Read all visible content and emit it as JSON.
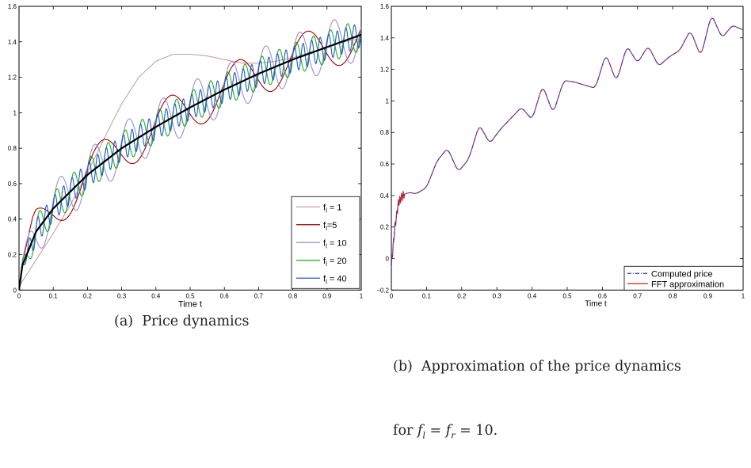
{
  "chart_data": [
    {
      "type": "line",
      "xlabel": "Time t",
      "ylabel": "",
      "xlim": [
        0,
        1
      ],
      "ylim": [
        0,
        1.6
      ],
      "xticks": [
        "0",
        "0.1",
        "0.2",
        "0.3",
        "0.4",
        "0.5",
        "0.6",
        "0.7",
        "0.8",
        "0.9",
        "1"
      ],
      "yticks": [
        "0",
        "0.2",
        "0.4",
        "0.6",
        "0.8",
        "1",
        "1.2",
        "1.4",
        "1.6"
      ],
      "legend_position": "bottom-right",
      "caption": "(a)  Price dynamics",
      "trend": {
        "x": [
          0,
          0.01,
          0.05,
          0.1,
          0.2,
          0.3,
          0.4,
          0.5,
          0.6,
          0.7,
          0.8,
          0.9,
          1.0
        ],
        "y": [
          0,
          0.14,
          0.33,
          0.46,
          0.65,
          0.8,
          0.92,
          1.03,
          1.13,
          1.22,
          1.3,
          1.37,
          1.44
        ],
        "color": "#000000"
      },
      "series": [
        {
          "name": "f_l = 1",
          "label_base": "f",
          "label_sub": "l",
          "label_rest": " = 1",
          "freq": 1,
          "color": "#c9a0a3",
          "x": [
            0,
            0.05,
            0.1,
            0.15,
            0.2,
            0.25,
            0.3,
            0.35,
            0.4,
            0.45,
            0.5,
            0.55,
            0.6,
            0.65,
            0.7,
            0.75,
            0.8,
            0.85,
            0.9,
            0.95,
            1.0
          ],
          "y": [
            0.02,
            0.17,
            0.32,
            0.48,
            0.66,
            0.86,
            1.05,
            1.2,
            1.29,
            1.33,
            1.33,
            1.32,
            1.3,
            1.28,
            1.28,
            1.29,
            1.31,
            1.34,
            1.37,
            1.4,
            1.42
          ]
        },
        {
          "name": "f_l=5",
          "label_base": "f",
          "label_sub": "l",
          "label_rest": "=5",
          "freq": 5,
          "color": "#a00000"
        },
        {
          "name": "f_l = 10",
          "label_base": "f",
          "label_sub": "l",
          "label_rest": " = 10",
          "freq": 10,
          "color": "#9d8fd0"
        },
        {
          "name": "f_l = 20",
          "label_base": "f",
          "label_sub": "l",
          "label_rest": " = 20",
          "freq": 20,
          "color": "#22aa22"
        },
        {
          "name": "f_l = 40",
          "label_base": "f",
          "label_sub": "l",
          "label_rest": " = 40",
          "freq": 40,
          "color": "#1f5fbf"
        }
      ]
    },
    {
      "type": "line",
      "xlabel": "Time t",
      "ylabel": "",
      "xlim": [
        0,
        1
      ],
      "ylim": [
        -0.2,
        1.6
      ],
      "xticks": [
        "0",
        "0.1",
        "0.2",
        "0.3",
        "0.4",
        "0.5",
        "0.6",
        "0.7",
        "0.8",
        "0.9",
        "1"
      ],
      "yticks": [
        "−0.2",
        "0",
        "0.2",
        "0.4",
        "0.6",
        "0.8",
        "1",
        "1.2",
        "1.4",
        "1.6"
      ],
      "legend_position": "bottom-right",
      "caption_line1": "(b)  Approximation of the price dynamics",
      "caption_line2_prefix": "for ",
      "caption_line2_math": "f",
      "caption_line2_sub1": "l",
      "caption_line2_mid": " = ",
      "caption_line2_math2": "f",
      "caption_line2_sub2": "r",
      "caption_line2_suffix": " = 10.",
      "series": [
        {
          "name": "Computed price",
          "color": "#1f3fd0",
          "style": "dashdot",
          "x": [
            0,
            0.01,
            0.02,
            0.03,
            0.05,
            0.07,
            0.1,
            0.13,
            0.16,
            0.19,
            0.22,
            0.25,
            0.28,
            0.31,
            0.34,
            0.37,
            0.4,
            0.43,
            0.46,
            0.49,
            0.52,
            0.55,
            0.58,
            0.61,
            0.64,
            0.67,
            0.7,
            0.73,
            0.76,
            0.79,
            0.82,
            0.85,
            0.88,
            0.91,
            0.94,
            0.97,
            1.0
          ],
          "y": [
            -0.05,
            0.2,
            0.35,
            0.4,
            0.42,
            0.41,
            0.45,
            0.62,
            0.7,
            0.55,
            0.63,
            0.85,
            0.73,
            0.82,
            0.89,
            0.96,
            0.88,
            1.1,
            0.92,
            1.13,
            1.12,
            1.1,
            1.08,
            1.3,
            1.12,
            1.35,
            1.24,
            1.35,
            1.22,
            1.28,
            1.32,
            1.45,
            1.28,
            1.55,
            1.4,
            1.48,
            1.45
          ]
        },
        {
          "name": "FFT approximation",
          "color": "#d02020",
          "style": "solid"
        }
      ]
    }
  ]
}
